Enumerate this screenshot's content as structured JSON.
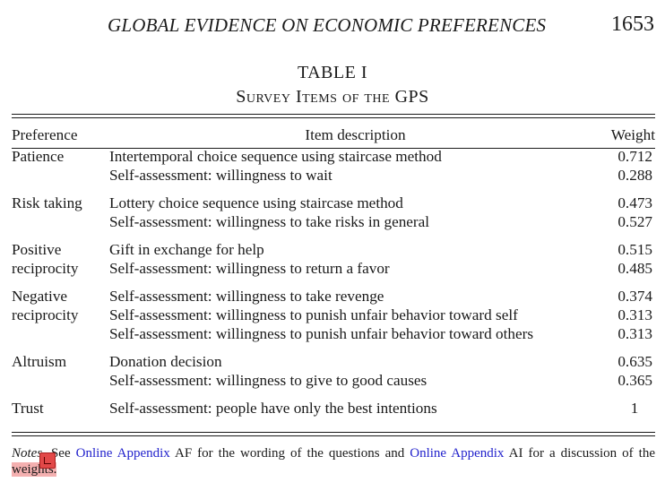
{
  "header": {
    "running_title": "GLOBAL EVIDENCE ON ECONOMIC PREFERENCES",
    "page_number": "1653"
  },
  "table": {
    "label": "TABLE I",
    "title": "Survey Items of the GPS",
    "columns": [
      "Preference",
      "Item description",
      "Weight"
    ],
    "groups": [
      {
        "preference_lines": [
          "Patience"
        ],
        "items": [
          {
            "description": "Intertemporal choice sequence using staircase method",
            "weight": "0.712"
          },
          {
            "description": "Self-assessment: willingness to wait",
            "weight": "0.288"
          }
        ]
      },
      {
        "preference_lines": [
          "Risk taking"
        ],
        "items": [
          {
            "description": "Lottery choice sequence using staircase method",
            "weight": "0.473"
          },
          {
            "description": "Self-assessment: willingness to take risks in general",
            "weight": "0.527"
          }
        ]
      },
      {
        "preference_lines": [
          "Positive",
          "reciprocity"
        ],
        "items": [
          {
            "description": "Gift in exchange for help",
            "weight": "0.515"
          },
          {
            "description": "Self-assessment: willingness to return a favor",
            "weight": "0.485"
          }
        ]
      },
      {
        "preference_lines": [
          "Negative",
          "reciprocity"
        ],
        "items": [
          {
            "description": "Self-assessment: willingness to take revenge",
            "weight": "0.374"
          },
          {
            "description": "Self-assessment: willingness to punish unfair behavior toward self",
            "weight": "0.313"
          },
          {
            "description": "Self-assessment: willingness to punish unfair behavior toward others",
            "weight": "0.313"
          }
        ]
      },
      {
        "preference_lines": [
          "Altruism"
        ],
        "items": [
          {
            "description": "Donation decision",
            "weight": "0.635"
          },
          {
            "description": "Self-assessment: willingness to give to good causes",
            "weight": "0.365"
          }
        ]
      },
      {
        "preference_lines": [
          "Trust"
        ],
        "items": [
          {
            "description": "Self-assessment: people have only the best intentions",
            "weight": "1"
          }
        ]
      }
    ]
  },
  "notes": {
    "label": "Notes",
    "part1": ". See ",
    "link1": "Online Appendix",
    "part2": " AF for the wording of the questions and ",
    "link2": "Online Appendix",
    "part3": " AI for a discussion of the ",
    "highlight": "weights."
  },
  "colors": {
    "link": "#2222cc",
    "highlight": "#f4b0b0",
    "annotation_marker": "#e24848"
  }
}
